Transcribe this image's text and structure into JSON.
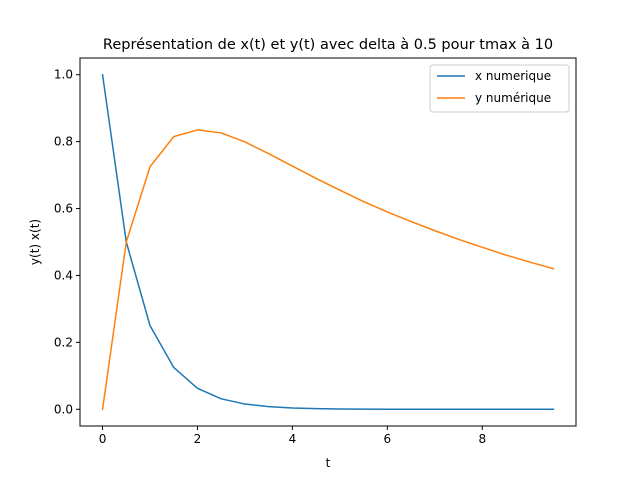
{
  "chart_data": {
    "type": "line",
    "title": "Représentation de x(t) et y(t) avec delta à 0.5 pour tmax à 10",
    "xlabel": "t",
    "ylabel": "y(t) x(t)",
    "xlim": [
      -0.475,
      9.975
    ],
    "ylim": [
      -0.05,
      1.05
    ],
    "xticks": [
      0,
      2,
      4,
      6,
      8
    ],
    "yticks": [
      0.0,
      0.2,
      0.4,
      0.6,
      0.8,
      1.0
    ],
    "xtick_labels": [
      "0",
      "2",
      "4",
      "6",
      "8"
    ],
    "ytick_labels": [
      "0.0",
      "0.2",
      "0.4",
      "0.6",
      "0.8",
      "1.0"
    ],
    "grid": false,
    "legend_position": "top-right",
    "x": [
      0,
      0.5,
      1.0,
      1.5,
      2.0,
      2.5,
      3.0,
      3.5,
      4.0,
      4.5,
      5.0,
      5.5,
      6.0,
      6.5,
      7.0,
      7.5,
      8.0,
      8.5,
      9.0,
      9.5
    ],
    "series": [
      {
        "name": "x numerique",
        "color": "#1f77b4",
        "values": [
          1.0,
          0.5,
          0.25,
          0.125,
          0.0625,
          0.03125,
          0.0156,
          0.0078,
          0.0039,
          0.002,
          0.001,
          0.0005,
          0.0002,
          0.0001,
          0.0001,
          0.0,
          0.0,
          0.0,
          0.0,
          0.0
        ]
      },
      {
        "name": "y numérique",
        "color": "#ff7f0e",
        "values": [
          0.0,
          0.5,
          0.725,
          0.815,
          0.835,
          0.826,
          0.799,
          0.764,
          0.727,
          0.69,
          0.655,
          0.621,
          0.59,
          0.561,
          0.534,
          0.508,
          0.484,
          0.461,
          0.44,
          0.42
        ]
      }
    ]
  }
}
